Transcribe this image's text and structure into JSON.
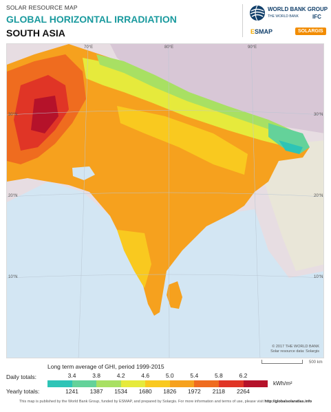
{
  "header": {
    "pre_title": "SOLAR RESOURCE MAP",
    "title": "GLOBAL HORIZONTAL IRRADIATION",
    "region": "SOUTH ASIA"
  },
  "logos": {
    "world_bank": "WORLD BANK GROUP",
    "world_bank_sub": "THE WORLD BANK",
    "ifc": "IFC",
    "esmap_e": "E",
    "esmap": "SMAP",
    "solargis": "SOLARGIS"
  },
  "map": {
    "lon_labels": [
      "70°E",
      "80°E",
      "90°E"
    ],
    "lat_labels_left": [
      "30°N",
      "20°N",
      "10°N"
    ],
    "lat_labels_right": [
      "30°N",
      "20°N",
      "10°N"
    ],
    "credit_line1": "© 2017 THE WORLD BANK",
    "credit_line2": "Solar resource data: Solargis",
    "scale": "500 km"
  },
  "legend": {
    "title": "Long term average of GHI, period 1999-2015",
    "daily_label": "Daily totals:",
    "yearly_label": "Yearly totals:",
    "daily_values": [
      "3.4",
      "3.8",
      "4.2",
      "4.6",
      "5.0",
      "5.4",
      "5.8",
      "6.2"
    ],
    "yearly_values": [
      "1241",
      "1387",
      "1534",
      "1680",
      "1826",
      "1972",
      "2118",
      "2264"
    ],
    "unit": "kWh/m²",
    "colors": [
      "#2ec4b6",
      "#64d29a",
      "#a8e063",
      "#e6ea3c",
      "#f9c91f",
      "#f6a11e",
      "#ef6c1f",
      "#e03526",
      "#b5122a"
    ]
  },
  "footer": {
    "text": "This map is published by the World Bank Group, funded by ESMAP, and prepared by Solargis. For more information and terms of use, please visit ",
    "link": "http://globalsolaratlas.info"
  }
}
